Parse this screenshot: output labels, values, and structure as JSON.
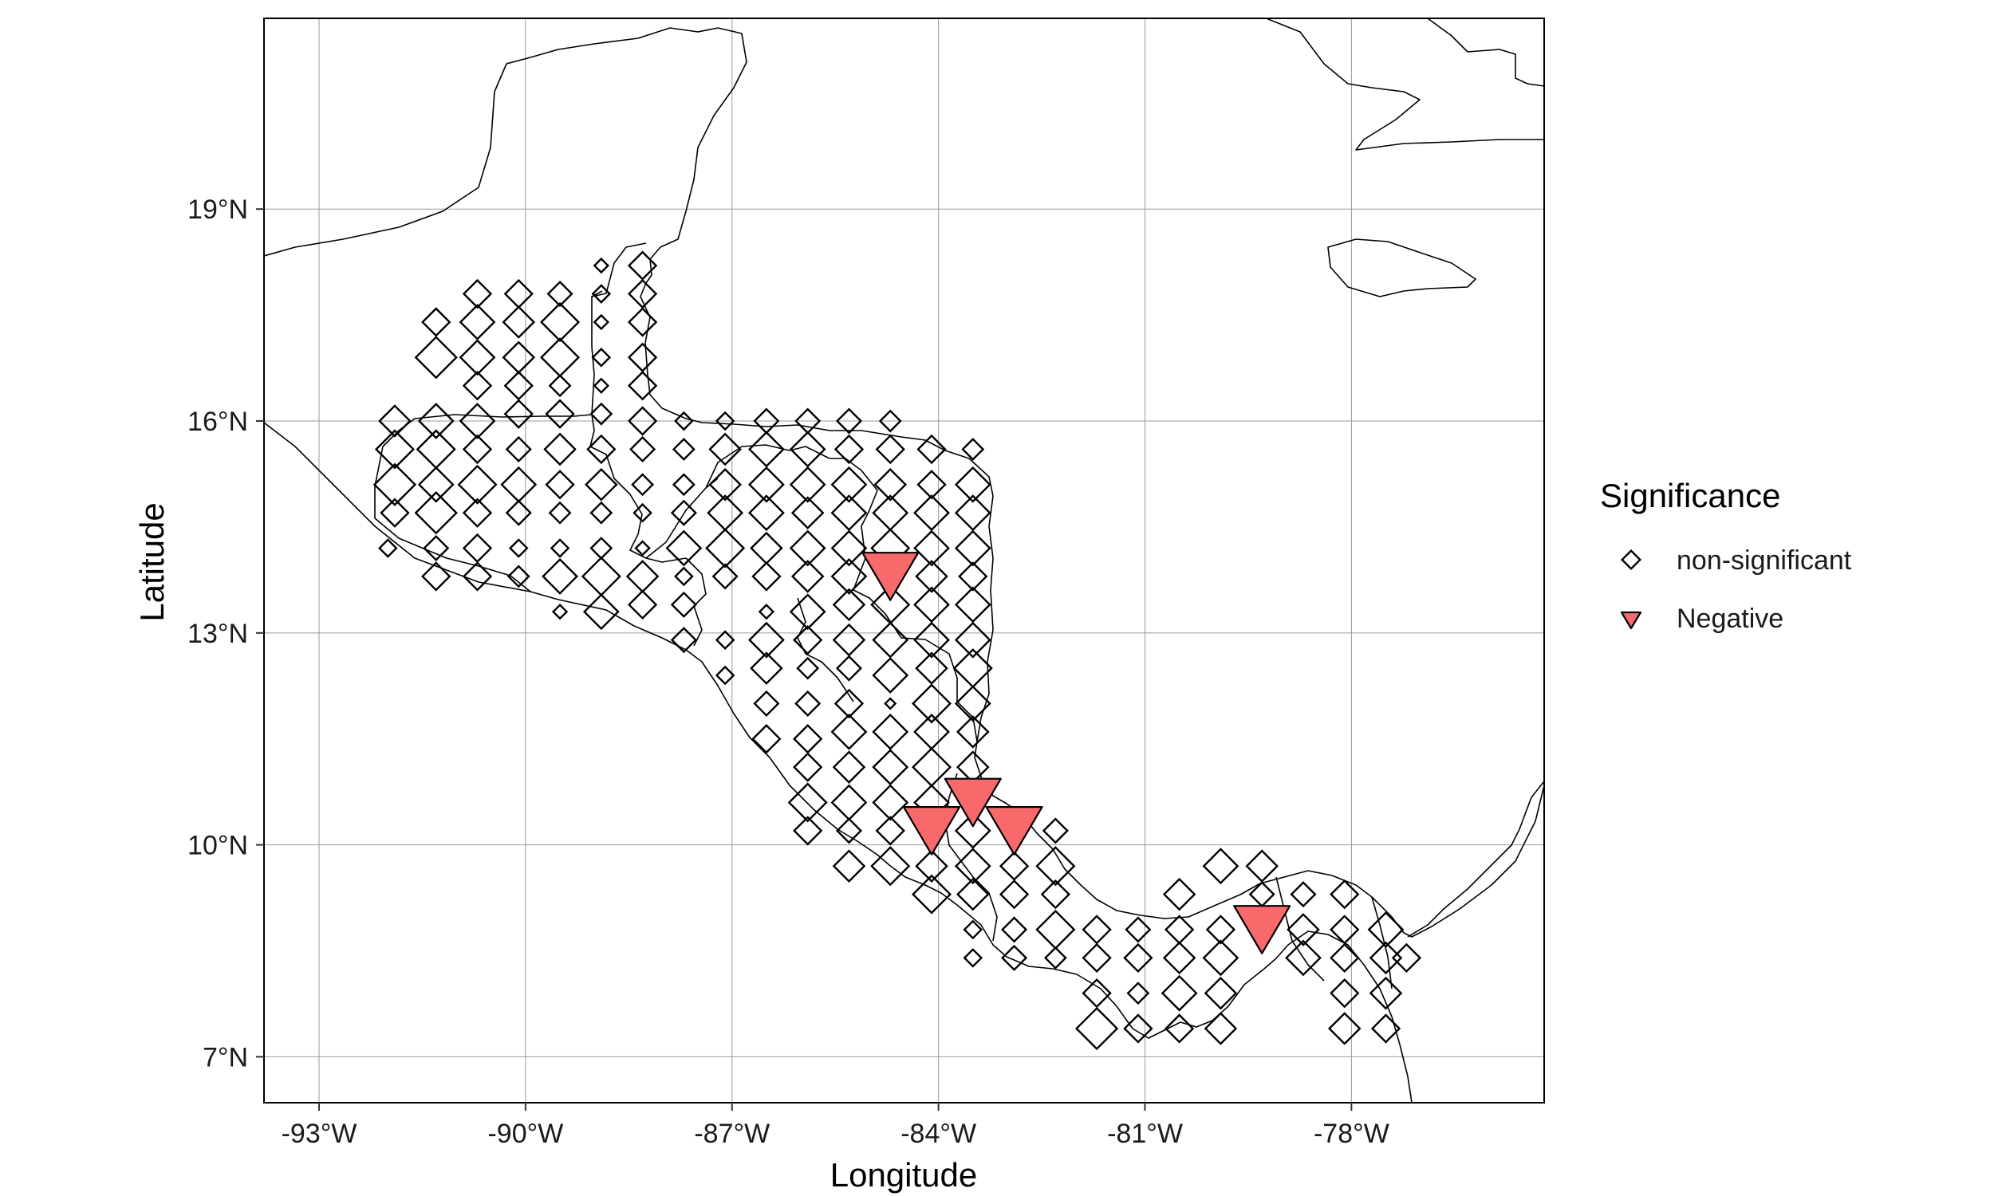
{
  "chart_data": {
    "type": "scatter",
    "xlabel": "Longitude",
    "ylabel": "Latitude",
    "xlim": [
      -93.8,
      -75.2
    ],
    "ylim": [
      6.35,
      21.7
    ],
    "x_ticks": [
      -93,
      -90,
      -87,
      -84,
      -81,
      -78
    ],
    "x_tick_labels": [
      "-93°W",
      "-90°W",
      "-87°W",
      "-84°W",
      "-81°W",
      "-78°W"
    ],
    "y_ticks": [
      7,
      10,
      13,
      16,
      19
    ],
    "y_tick_labels": [
      "7°N",
      "10°N",
      "13°N",
      "16°N",
      "19°N"
    ],
    "grid": true,
    "legend": {
      "title": "Significance",
      "placement": "right",
      "entries": [
        {
          "label": "non-significant",
          "shape": "diamond-open"
        },
        {
          "label": "Negative",
          "shape": "triangle-down",
          "color": "#f8696b"
        }
      ]
    },
    "series": [
      {
        "name": "non-significant",
        "points": [
          [
            -91.3,
            17.4,
            0.6
          ],
          [
            -90.7,
            17.8,
            0.6
          ],
          [
            -90.1,
            17.8,
            0.6
          ],
          [
            -89.5,
            17.8,
            0.5
          ],
          [
            -88.9,
            18.2,
            0.2
          ],
          [
            -88.3,
            18.2,
            0.6
          ],
          [
            -91.3,
            16.9,
            1.0
          ],
          [
            -90.7,
            17.4,
            0.8
          ],
          [
            -90.1,
            17.4,
            0.7
          ],
          [
            -89.5,
            17.4,
            0.9
          ],
          [
            -88.9,
            17.8,
            0.3
          ],
          [
            -88.3,
            17.8,
            0.6
          ],
          [
            -90.7,
            16.9,
            0.8
          ],
          [
            -90.1,
            16.9,
            0.7
          ],
          [
            -89.5,
            16.9,
            0.9
          ],
          [
            -88.9,
            17.4,
            0.2
          ],
          [
            -88.3,
            17.4,
            0.6
          ],
          [
            -90.7,
            16.5,
            0.6
          ],
          [
            -90.1,
            16.5,
            0.6
          ],
          [
            -89.5,
            16.5,
            0.4
          ],
          [
            -88.9,
            16.9,
            0.3
          ],
          [
            -88.3,
            16.9,
            0.6
          ],
          [
            -91.9,
            16.0,
            0.7
          ],
          [
            -91.3,
            16.0,
            0.8
          ],
          [
            -90.7,
            16.0,
            0.8
          ],
          [
            -90.1,
            16.1,
            0.6
          ],
          [
            -89.5,
            16.1,
            0.6
          ],
          [
            -88.9,
            16.5,
            0.2
          ],
          [
            -88.3,
            16.5,
            0.6
          ],
          [
            -88.9,
            16.1,
            0.4
          ],
          [
            -88.3,
            16.0,
            0.6
          ],
          [
            -87.7,
            16.0,
            0.3
          ],
          [
            -87.1,
            16.0,
            0.3
          ],
          [
            -86.5,
            16.0,
            0.5
          ],
          [
            -85.9,
            16.0,
            0.5
          ],
          [
            -85.3,
            16.0,
            0.5
          ],
          [
            -84.7,
            16.0,
            0.4
          ],
          [
            -91.9,
            15.6,
            0.9
          ],
          [
            -91.3,
            15.6,
            0.9
          ],
          [
            -90.7,
            15.6,
            0.6
          ],
          [
            -90.1,
            15.6,
            0.5
          ],
          [
            -89.5,
            15.6,
            0.7
          ],
          [
            -88.9,
            15.6,
            0.6
          ],
          [
            -88.3,
            15.6,
            0.5
          ],
          [
            -87.7,
            15.6,
            0.4
          ],
          [
            -87.1,
            15.6,
            0.7
          ],
          [
            -86.5,
            15.6,
            0.8
          ],
          [
            -85.9,
            15.6,
            0.8
          ],
          [
            -85.3,
            15.6,
            0.6
          ],
          [
            -84.7,
            15.6,
            0.6
          ],
          [
            -84.1,
            15.6,
            0.6
          ],
          [
            -83.5,
            15.6,
            0.4
          ],
          [
            -91.9,
            15.1,
            1.0
          ],
          [
            -91.3,
            15.1,
            0.8
          ],
          [
            -90.7,
            15.1,
            0.9
          ],
          [
            -90.1,
            15.1,
            0.8
          ],
          [
            -89.5,
            15.1,
            0.6
          ],
          [
            -88.9,
            15.1,
            0.7
          ],
          [
            -88.3,
            15.1,
            0.4
          ],
          [
            -87.7,
            15.1,
            0.4
          ],
          [
            -87.1,
            15.1,
            0.7
          ],
          [
            -86.5,
            15.1,
            0.8
          ],
          [
            -85.9,
            15.1,
            0.8
          ],
          [
            -85.3,
            15.1,
            0.8
          ],
          [
            -84.7,
            15.1,
            0.7
          ],
          [
            -84.1,
            15.1,
            0.6
          ],
          [
            -83.5,
            15.1,
            0.8
          ],
          [
            -91.9,
            14.7,
            0.6
          ],
          [
            -91.3,
            14.7,
            1.0
          ],
          [
            -90.7,
            14.7,
            0.6
          ],
          [
            -90.1,
            14.7,
            0.5
          ],
          [
            -89.5,
            14.7,
            0.4
          ],
          [
            -88.9,
            14.7,
            0.4
          ],
          [
            -88.3,
            14.7,
            0.3
          ],
          [
            -87.7,
            14.7,
            0.5
          ],
          [
            -87.1,
            14.7,
            0.8
          ],
          [
            -86.5,
            14.7,
            0.8
          ],
          [
            -85.9,
            14.7,
            0.7
          ],
          [
            -85.3,
            14.7,
            0.8
          ],
          [
            -84.7,
            14.7,
            0.8
          ],
          [
            -84.1,
            14.7,
            0.8
          ],
          [
            -83.5,
            14.7,
            0.8
          ],
          [
            -92.0,
            14.2,
            0.3
          ],
          [
            -91.3,
            14.2,
            0.5
          ],
          [
            -90.7,
            14.2,
            0.6
          ],
          [
            -90.1,
            14.2,
            0.3
          ],
          [
            -89.5,
            14.2,
            0.3
          ],
          [
            -88.9,
            14.2,
            0.4
          ],
          [
            -88.3,
            14.2,
            0.2
          ],
          [
            -87.7,
            14.2,
            0.8
          ],
          [
            -87.1,
            14.2,
            0.9
          ],
          [
            -86.5,
            14.2,
            0.7
          ],
          [
            -85.9,
            14.2,
            0.8
          ],
          [
            -85.3,
            14.2,
            0.8
          ],
          [
            -84.7,
            14.2,
            0.9
          ],
          [
            -84.1,
            14.2,
            0.8
          ],
          [
            -83.5,
            14.2,
            0.8
          ],
          [
            -91.3,
            13.8,
            0.6
          ],
          [
            -90.7,
            13.8,
            0.6
          ],
          [
            -90.1,
            13.8,
            0.4
          ],
          [
            -89.5,
            13.8,
            0.8
          ],
          [
            -88.9,
            13.8,
            0.9
          ],
          [
            -88.3,
            13.8,
            0.7
          ],
          [
            -87.7,
            13.8,
            0.3
          ],
          [
            -87.1,
            13.8,
            0.5
          ],
          [
            -86.5,
            13.8,
            0.6
          ],
          [
            -85.9,
            13.8,
            0.7
          ],
          [
            -85.3,
            13.8,
            0.8
          ],
          [
            -84.1,
            13.8,
            0.7
          ],
          [
            -83.5,
            13.8,
            0.6
          ],
          [
            -89.5,
            13.3,
            0.2
          ],
          [
            -88.9,
            13.3,
            0.8
          ],
          [
            -88.3,
            13.4,
            0.6
          ],
          [
            -87.7,
            13.4,
            0.5
          ],
          [
            -86.5,
            13.3,
            0.2
          ],
          [
            -85.9,
            13.3,
            0.8
          ],
          [
            -85.3,
            13.4,
            0.7
          ],
          [
            -84.7,
            13.4,
            0.9
          ],
          [
            -84.1,
            13.4,
            0.8
          ],
          [
            -83.5,
            13.4,
            0.8
          ],
          [
            -87.7,
            12.9,
            0.5
          ],
          [
            -87.1,
            12.9,
            0.3
          ],
          [
            -86.5,
            12.9,
            0.8
          ],
          [
            -85.9,
            12.9,
            0.6
          ],
          [
            -85.3,
            12.9,
            0.7
          ],
          [
            -84.7,
            12.9,
            0.8
          ],
          [
            -84.1,
            12.9,
            0.8
          ],
          [
            -83.5,
            12.9,
            0.8
          ],
          [
            -87.1,
            12.4,
            0.3
          ],
          [
            -86.5,
            12.5,
            0.7
          ],
          [
            -85.9,
            12.5,
            0.4
          ],
          [
            -85.3,
            12.5,
            0.5
          ],
          [
            -84.7,
            12.4,
            0.8
          ],
          [
            -84.1,
            12.5,
            0.7
          ],
          [
            -83.5,
            12.5,
            0.9
          ],
          [
            -86.5,
            12.0,
            0.5
          ],
          [
            -85.9,
            12.0,
            0.5
          ],
          [
            -85.3,
            12.0,
            0.6
          ],
          [
            -84.7,
            12.0,
            0.1
          ],
          [
            -84.1,
            12.0,
            0.9
          ],
          [
            -83.5,
            12.0,
            0.8
          ],
          [
            -86.5,
            11.5,
            0.6
          ],
          [
            -85.9,
            11.5,
            0.6
          ],
          [
            -85.3,
            11.6,
            0.8
          ],
          [
            -84.7,
            11.6,
            0.8
          ],
          [
            -84.1,
            11.6,
            0.8
          ],
          [
            -83.5,
            11.6,
            0.7
          ],
          [
            -85.9,
            11.1,
            0.6
          ],
          [
            -85.3,
            11.1,
            0.7
          ],
          [
            -84.7,
            11.1,
            0.8
          ],
          [
            -84.1,
            11.1,
            0.9
          ],
          [
            -83.5,
            11.1,
            0.7
          ],
          [
            -85.9,
            10.6,
            0.9
          ],
          [
            -85.3,
            10.6,
            0.8
          ],
          [
            -84.7,
            10.6,
            0.8
          ],
          [
            -84.1,
            10.6,
            0.8
          ],
          [
            -85.9,
            10.2,
            0.6
          ],
          [
            -85.3,
            10.2,
            0.5
          ],
          [
            -84.7,
            10.2,
            0.6
          ],
          [
            -83.5,
            10.2,
            0.8
          ],
          [
            -82.3,
            10.2,
            0.5
          ],
          [
            -85.3,
            9.7,
            0.7
          ],
          [
            -84.7,
            9.7,
            0.9
          ],
          [
            -84.1,
            9.7,
            0.7
          ],
          [
            -83.5,
            9.7,
            0.8
          ],
          [
            -82.9,
            9.7,
            0.6
          ],
          [
            -82.3,
            9.7,
            0.9
          ],
          [
            -84.1,
            9.3,
            0.9
          ],
          [
            -83.5,
            9.3,
            0.7
          ],
          [
            -82.9,
            9.3,
            0.6
          ],
          [
            -82.3,
            9.3,
            0.6
          ],
          [
            -80.5,
            9.3,
            0.7
          ],
          [
            -79.9,
            9.7,
            0.8
          ],
          [
            -79.3,
            9.7,
            0.7
          ],
          [
            -83.5,
            8.8,
            0.3
          ],
          [
            -82.9,
            8.8,
            0.5
          ],
          [
            -82.3,
            8.8,
            0.9
          ],
          [
            -81.7,
            8.8,
            0.6
          ],
          [
            -81.1,
            8.8,
            0.5
          ],
          [
            -80.5,
            8.8,
            0.6
          ],
          [
            -79.9,
            8.8,
            0.6
          ],
          [
            -79.3,
            9.3,
            0.5
          ],
          [
            -78.7,
            9.3,
            0.5
          ],
          [
            -78.1,
            9.3,
            0.6
          ],
          [
            -78.7,
            8.8,
            0.7
          ],
          [
            -78.1,
            8.8,
            0.6
          ],
          [
            -77.5,
            8.8,
            0.8
          ],
          [
            -83.5,
            8.4,
            0.3
          ],
          [
            -82.9,
            8.4,
            0.5
          ],
          [
            -82.3,
            8.4,
            0.4
          ],
          [
            -81.7,
            8.4,
            0.6
          ],
          [
            -81.1,
            8.4,
            0.6
          ],
          [
            -80.5,
            8.4,
            0.7
          ],
          [
            -79.9,
            8.4,
            0.8
          ],
          [
            -78.7,
            8.4,
            0.8
          ],
          [
            -78.1,
            8.4,
            0.6
          ],
          [
            -77.5,
            8.4,
            0.7
          ],
          [
            -77.2,
            8.4,
            0.6
          ],
          [
            -81.7,
            7.9,
            0.6
          ],
          [
            -81.1,
            7.9,
            0.4
          ],
          [
            -80.5,
            7.9,
            0.8
          ],
          [
            -79.9,
            7.9,
            0.7
          ],
          [
            -78.1,
            7.9,
            0.6
          ],
          [
            -77.5,
            7.9,
            0.7
          ],
          [
            -81.7,
            7.4,
            1.0
          ],
          [
            -81.1,
            7.4,
            0.6
          ],
          [
            -80.5,
            7.4,
            0.6
          ],
          [
            -79.9,
            7.4,
            0.7
          ],
          [
            -78.1,
            7.4,
            0.7
          ],
          [
            -77.5,
            7.4,
            0.6
          ]
        ]
      },
      {
        "name": "Negative",
        "points": [
          [
            -84.7,
            13.8,
            1.0
          ],
          [
            -83.5,
            10.6,
            1.0
          ],
          [
            -84.1,
            10.2,
            1.0
          ],
          [
            -82.9,
            10.2,
            1.0
          ],
          [
            -79.3,
            8.8,
            1.0
          ]
        ]
      }
    ]
  },
  "colors": {
    "negative": "#f8696b",
    "grid": "#9a9a9a",
    "outline": "#000000"
  }
}
